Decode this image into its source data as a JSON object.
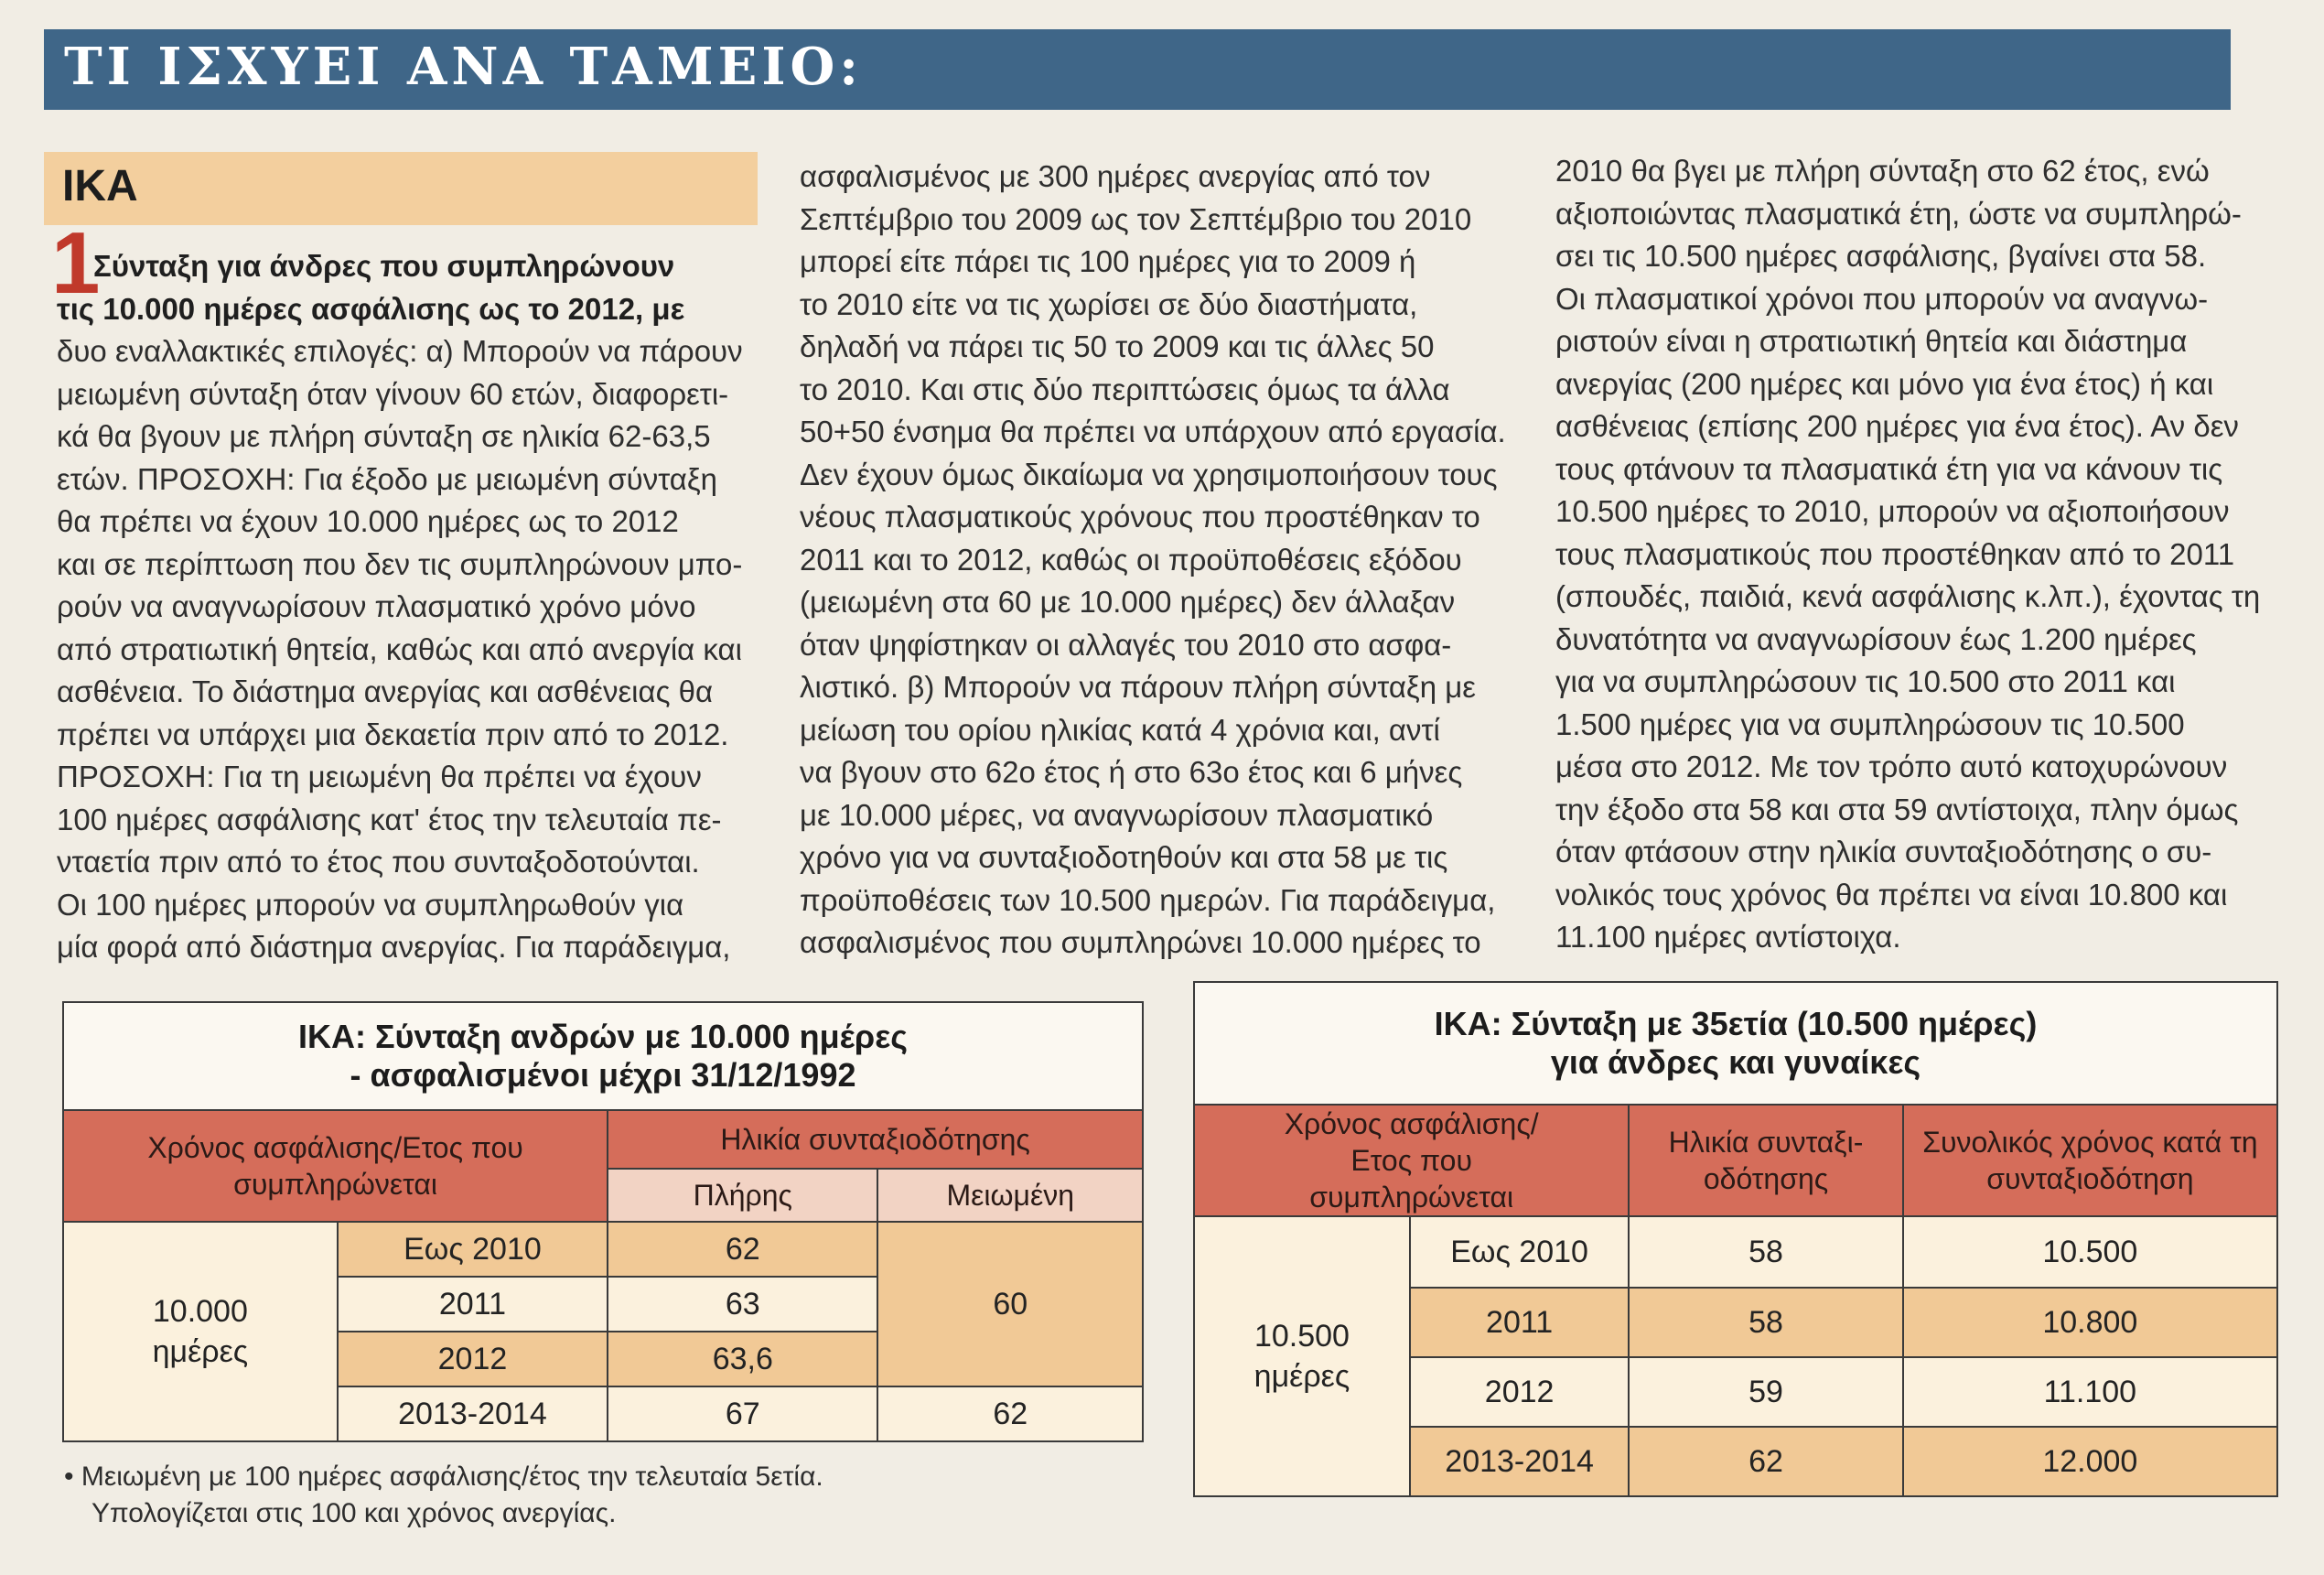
{
  "banner": {
    "title": "ΤΙ ΙΣΧΥΕΙ ΑΝΑ ΤΑΜΕΙΟ:"
  },
  "section": {
    "label": "ΙΚΑ",
    "number": "1"
  },
  "article": {
    "col1": [
      "Σύνταξη για άνδρες που συμπληρώνουν",
      "τις 10.000 ημέρες ασφάλισης ως το 2012, με",
      "δυο εναλλακτικές επιλογές: α) Μπορούν να πάρουν",
      "μειωμένη σύνταξη όταν γίνουν 60 ετών, διαφορετι-",
      "κά θα βγουν με πλήρη σύνταξη σε ηλικία 62-63,5",
      "ετών. ΠΡΟΣΟΧΗ: Για έξοδο με μειωμένη σύνταξη",
      "θα πρέπει να έχουν 10.000 ημέρες ως το 2012",
      "και σε περίπτωση που δεν τις συμπληρώνουν μπο-",
      "ρούν να αναγνωρίσουν πλασματικό χρόνο μόνο",
      "από στρατιωτική θητεία, καθώς και από ανεργία και",
      "ασθένεια. Το διάστημα ανεργίας και ασθένειας θα",
      "πρέπει να υπάρχει μια δεκαετία πριν από το 2012.",
      "ΠΡΟΣΟΧΗ: Για τη μειωμένη θα πρέπει να έχουν",
      "100 ημέρες ασφάλισης κατ' έτος την τελευταία πε-",
      "νταετία πριν από το έτος που συνταξοδοτούνται.",
      "Οι 100 ημέρες μπορούν να συμπληρωθούν για",
      "μία φορά από διάστημα ανεργίας. Για παράδειγμα,"
    ],
    "col2": [
      "ασφαλισμένος με 300 ημέρες ανεργίας από τον",
      "Σεπτέμβριο του 2009 ως τον Σεπτέμβριο του 2010",
      "μπορεί είτε πάρει τις 100 ημέρες για το 2009 ή",
      "το 2010 είτε να τις χωρίσει σε δύο διαστήματα,",
      "δηλαδή να πάρει τις 50 το 2009 και τις άλλες 50",
      "το 2010. Και στις δύο περιπτώσεις όμως τα άλλα",
      "50+50 ένσημα θα πρέπει να υπάρχουν από εργασία.",
      "Δεν έχουν όμως δικαίωμα να χρησιμοποιήσουν τους",
      "νέους πλασματικούς χρόνους που προστέθηκαν το",
      "2011 και το 2012, καθώς οι προϋποθέσεις εξόδου",
      "(μειωμένη στα 60 με 10.000 ημέρες) δεν άλλαξαν",
      "όταν ψηφίστηκαν οι αλλαγές του 2010 στο ασφα-",
      "λιστικό. β) Μπορούν να πάρουν πλήρη σύνταξη με",
      "μείωση του ορίου ηλικίας κατά 4 χρόνια και, αντί",
      "να βγουν στο 62ο έτος ή στο 63ο έτος και 6 μήνες",
      "με 10.000 μέρες, να αναγνωρίσουν πλασματικό",
      "χρόνο για να συνταξιοδοτηθούν και στα 58 με τις",
      "προϋποθέσεις των 10.500 ημερών. Για παράδειγμα,",
      "ασφαλισμένος που συμπληρώνει 10.000 ημέρες το"
    ],
    "col3": [
      "2010 θα βγει με πλήρη σύνταξη στο 62 έτος, ενώ",
      "αξιοποιώντας πλασματικά έτη, ώστε να συμπληρώ-",
      "σει τις 10.500 ημέρες ασφάλισης, βγαίνει στα 58.",
      "Οι πλασματικοί χρόνοι που μπορούν να αναγνω-",
      "ριστούν είναι η στρατιωτική θητεία και διάστημα",
      "ανεργίας (200 ημέρες και μόνο για ένα έτος) ή και",
      "ασθένειας (επίσης 200 ημέρες για ένα έτος). Αν δεν",
      "τους φτάνουν τα πλασματικά έτη για να κάνουν τις",
      "10.500 ημέρες το 2010, μπορούν να αξιοποιήσουν",
      "τους πλασματικούς που προστέθηκαν από το 2011",
      "(σπουδές, παιδιά, κενά ασφάλισης κ.λπ.), έχοντας τη",
      "δυνατότητα να αναγνωρίσουν έως 1.200 ημέρες",
      "για να συμπληρώσουν τις 10.500 στο 2011 και",
      "1.500 ημέρες για να συμπληρώσουν τις 10.500",
      "μέσα στο 2012. Με τον τρόπο αυτό κατοχυρώνουν",
      "την έξοδο στα 58 και στα 59 αντίστοιχα, πλην όμως",
      "όταν φτάσουν στην ηλικία συνταξιοδότησης ο συ-",
      "νολικός τους χρόνος θα πρέπει να είναι 10.800 και",
      "11.100 ημέρες αντίστοιχα."
    ]
  },
  "table1": {
    "title_line1": "ΙΚΑ: Σύνταξη ανδρών με 10.000 ημέρες",
    "title_line2": "- ασφαλισμένοι μέχρι 31/12/1992",
    "col_header_1": "Χρόνος ασφάλισης/Ετος που συμπληρώνεται",
    "col_header_2": "Ηλικία συνταξιοδότησης",
    "sub_header_full": "Πλήρης",
    "sub_header_reduced": "Μειωμένη",
    "group_label": "10.000 ημέρες",
    "rows": [
      {
        "year": "Εως 2010",
        "full": "62"
      },
      {
        "year": "2011",
        "full": "63"
      },
      {
        "year": "2012",
        "full": "63,6"
      },
      {
        "year": "2013-2014",
        "full": "67"
      }
    ],
    "reduced_merged": "60",
    "reduced_last": "62",
    "footnote_line1": "• Μειωμένη με 100 ημέρες ασφάλισης/έτος την τελευταία 5ετία.",
    "footnote_line2": "Υπολογίζεται στις 100 και χρόνος ανεργίας."
  },
  "table2": {
    "title_line1": "ΙΚΑ: Σύνταξη με 35ετία (10.500 ημέρες)",
    "title_line2": "για άνδρες και γυναίκες",
    "col_header_1": "Χρόνος ασφάλισης/ Ετος που συμπληρώνεται",
    "col_header_2": "Ηλικία συνταξι- οδότησης",
    "col_header_3": "Συνολικός χρόνος κατά τη συνταξιοδότηση",
    "group_label": "10.500 ημέρες",
    "rows": [
      {
        "year": "Εως 2010",
        "age": "58",
        "total": "10.500"
      },
      {
        "year": "2011",
        "age": "58",
        "total": "10.800"
      },
      {
        "year": "2012",
        "age": "59",
        "total": "11.100"
      },
      {
        "year": "2013-2014",
        "age": "62",
        "total": "12.000"
      }
    ]
  }
}
